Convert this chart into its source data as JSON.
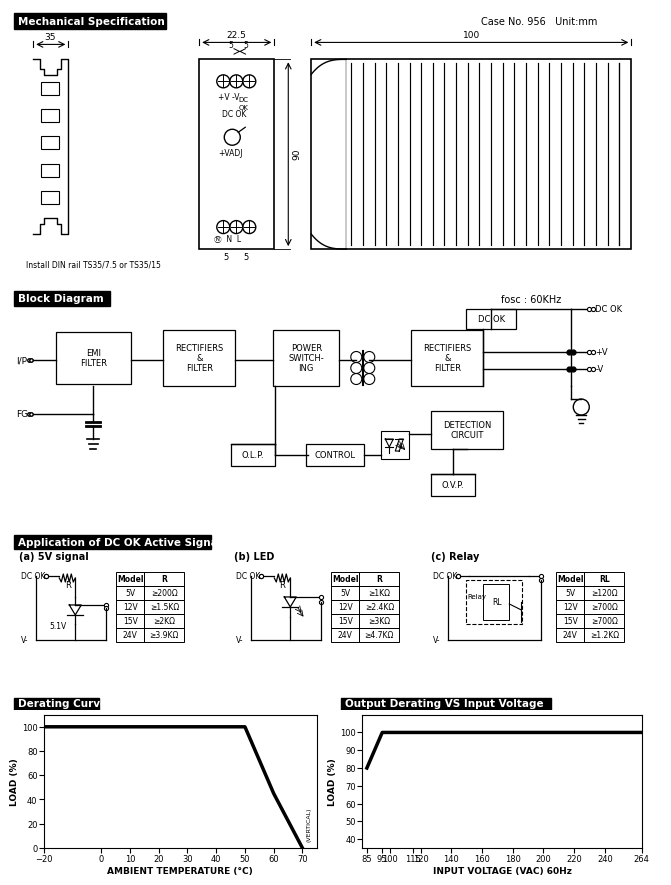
{
  "title_mech": "Mechanical Specification",
  "title_block": "Block Diagram",
  "title_app": "Application of DC OK Active Signal",
  "title_derate": "Derating Curve",
  "title_output": "Output Derating VS Input Voltage",
  "case_no": "Case No. 956   Unit:mm",
  "fosc": "fosc : 60KHz",
  "bg_color": "#ffffff",
  "derating_curve": {
    "x": [
      -20,
      50,
      60,
      70
    ],
    "y": [
      100,
      100,
      45,
      0
    ],
    "xlim": [
      -20,
      75
    ],
    "ylim": [
      0,
      110
    ],
    "xlabel": "AMBIENT TEMPERATURE (°C)",
    "ylabel": "LOAD (%)",
    "xticks": [
      -20,
      0,
      10,
      20,
      30,
      40,
      50,
      60,
      70
    ],
    "yticks": [
      0,
      20,
      40,
      60,
      80,
      100
    ],
    "vertical_label": "(VERTICAL)"
  },
  "output_derating": {
    "x": [
      85,
      95,
      100,
      264
    ],
    "y": [
      80,
      100,
      100,
      100
    ],
    "xlim": [
      82,
      264
    ],
    "ylim": [
      35,
      110
    ],
    "xlabel": "INPUT VOLTAGE (VAC) 60Hz",
    "ylabel": "LOAD (%)",
    "xticks": [
      85,
      95,
      100,
      115,
      120,
      140,
      160,
      180,
      200,
      220,
      240,
      264
    ],
    "yticks": [
      40,
      50,
      60,
      70,
      80,
      90,
      100
    ]
  }
}
